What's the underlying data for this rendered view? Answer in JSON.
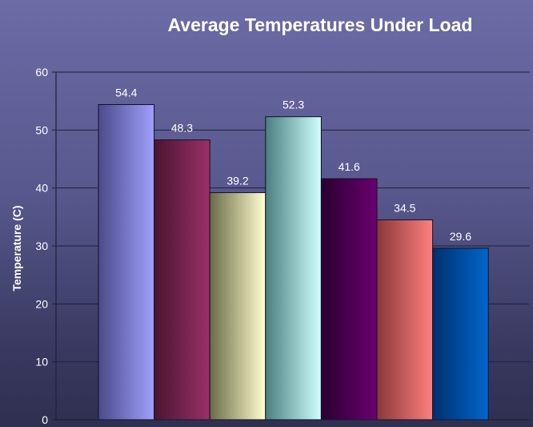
{
  "chart_data": {
    "type": "bar",
    "title": "Average Temperatures Under Load",
    "ylabel": "Temperature (C)",
    "xlabel": "",
    "ylim": [
      0,
      60
    ],
    "yticks": [
      0,
      10,
      20,
      30,
      40,
      50,
      60
    ],
    "grid": true,
    "values": [
      54.4,
      48.3,
      39.2,
      52.3,
      41.6,
      34.5,
      29.6
    ],
    "data_labels": [
      "54.4",
      "48.3",
      "39.2",
      "52.3",
      "41.6",
      "34.5",
      "29.6"
    ],
    "bar_colors": [
      [
        "#4a4a8a",
        "#a0a0ff"
      ],
      [
        "#4a1530",
        "#9a3068"
      ],
      [
        "#6a6a48",
        "#ffffd0"
      ],
      [
        "#4a8080",
        "#d0ffff"
      ],
      [
        "#2a0030",
        "#6a0070"
      ],
      [
        "#8a3838",
        "#ff8080"
      ],
      [
        "#003070",
        "#0066cc"
      ]
    ]
  }
}
